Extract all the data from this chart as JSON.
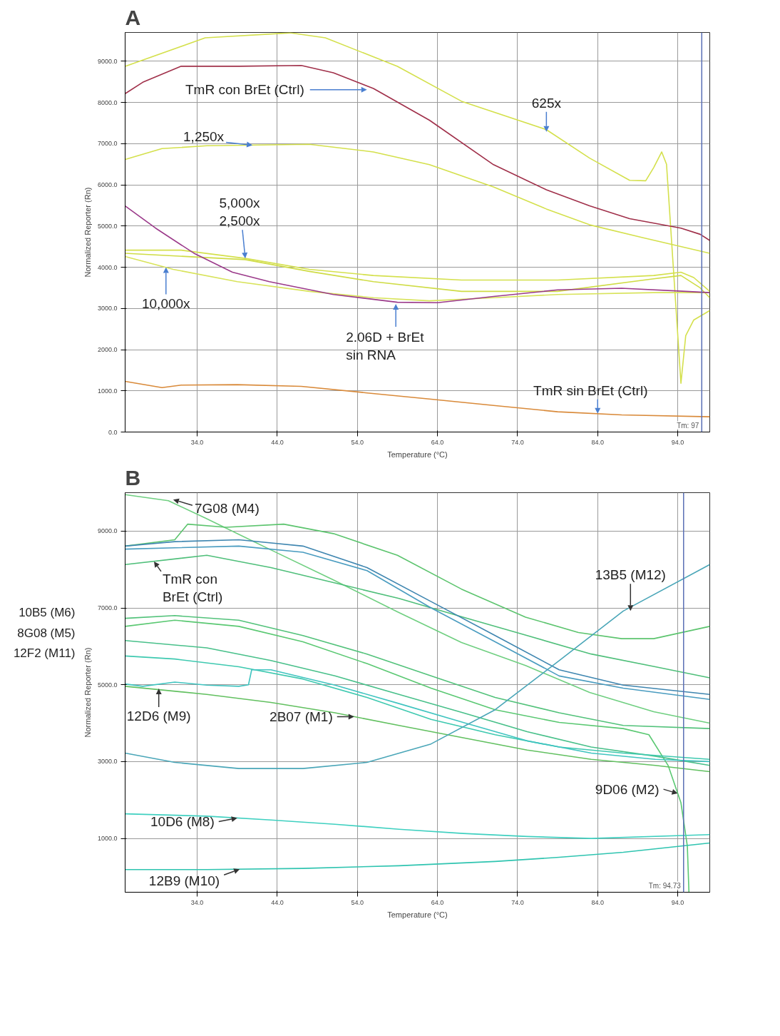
{
  "chart_data": [
    {
      "type": "line",
      "title": "A",
      "xlabel": "Temperature (°C)",
      "ylabel": "Normalized Reporter (Rn)",
      "xlim": [
        25,
        98
      ],
      "ylim": [
        0,
        9700
      ],
      "xticks": [
        {
          "value": 34,
          "label": "34.0"
        },
        {
          "value": 44,
          "label": "44.0"
        },
        {
          "value": 54,
          "label": "54.0"
        },
        {
          "value": 64,
          "label": "64.0"
        },
        {
          "value": 74,
          "label": "74.0"
        },
        {
          "value": 84,
          "label": "84.0"
        },
        {
          "value": 94,
          "label": "94.0"
        }
      ],
      "yticks": [
        {
          "value": 0,
          "label": "0.0"
        },
        {
          "value": 1000,
          "label": "1000.0"
        },
        {
          "value": 2000,
          "label": "2000.0"
        },
        {
          "value": 3000,
          "label": "3000.0"
        },
        {
          "value": 4000,
          "label": "4000.0"
        },
        {
          "value": 5000,
          "label": "5000.0"
        },
        {
          "value": 6000,
          "label": "6000.0"
        },
        {
          "value": 7000,
          "label": "7000.0"
        },
        {
          "value": 8000,
          "label": "8000.0"
        },
        {
          "value": 9000,
          "label": "9000.0"
        }
      ],
      "grid": true,
      "marker": "none",
      "line_style": "solid",
      "series": [
        {
          "color": "#d4e04c",
          "x": [
            25,
            35,
            45.6,
            50,
            59,
            67,
            77.6,
            83,
            88,
            90,
            91,
            92,
            92.6,
            94.4,
            95,
            96,
            98
          ],
          "values": [
            8877,
            9570,
            9690,
            9570,
            8877,
            8030,
            7340,
            6650,
            6110,
            6100,
            6420,
            6800,
            6500,
            1185,
            2340,
            2720,
            2950
          ]
        },
        {
          "color": "#a0304a",
          "x": [
            25,
            27.2,
            32,
            39.2,
            47,
            51,
            56,
            63,
            71,
            77.6,
            83,
            88,
            94.4,
            96.8,
            98
          ],
          "values": [
            8215,
            8490,
            8880,
            8880,
            8900,
            8720,
            8340,
            7570,
            6490,
            5880,
            5490,
            5180,
            4950,
            4800,
            4650
          ]
        },
        {
          "color": "#d4e04c",
          "x": [
            25,
            29.6,
            35.2,
            48,
            56,
            63,
            71,
            77.6,
            83,
            89.6,
            98
          ],
          "values": [
            6615,
            6880,
            6950,
            6985,
            6800,
            6490,
            5950,
            5415,
            5030,
            4720,
            4340
          ]
        },
        {
          "color": "#d4e04c",
          "x": [
            25,
            32,
            40,
            48,
            56,
            67,
            79,
            91,
            94.4,
            96,
            98
          ],
          "values": [
            4415,
            4415,
            4215,
            3950,
            3800,
            3690,
            3690,
            3800,
            3880,
            3750,
            3415
          ]
        },
        {
          "color": "#cfdc45",
          "x": [
            25,
            40,
            48,
            56,
            67,
            79,
            91,
            94.4,
            96.8,
            98
          ],
          "values": [
            4340,
            4185,
            3900,
            3650,
            3415,
            3415,
            3720,
            3800,
            3500,
            3260
          ]
        },
        {
          "color": "#d8e35a",
          "x": [
            25,
            31,
            39,
            48,
            56,
            63,
            71,
            79,
            91,
            98
          ],
          "values": [
            4260,
            3950,
            3650,
            3415,
            3260,
            3185,
            3260,
            3340,
            3385,
            3385
          ]
        },
        {
          "color": "#9b3a8a",
          "x": [
            25,
            28.8,
            33.6,
            38.4,
            43,
            51,
            59,
            64,
            71,
            79,
            87,
            95,
            98
          ],
          "values": [
            5490,
            4950,
            4340,
            3880,
            3650,
            3340,
            3150,
            3140,
            3290,
            3450,
            3490,
            3415,
            3385
          ]
        },
        {
          "color": "#d98a3a",
          "x": [
            25,
            29.6,
            32,
            39,
            47,
            55,
            63,
            71,
            79,
            87,
            98
          ],
          "values": [
            1230,
            1077,
            1140,
            1150,
            1108,
            954,
            800,
            646,
            492,
            415,
            370
          ]
        }
      ],
      "ref_lines": [
        {
          "axis": "x",
          "value": 97,
          "label": "Tm: 97",
          "color": "#5a6fb5"
        }
      ],
      "annotations": [
        {
          "text": "TmR con BrEt (Ctrl)",
          "x": 55.2,
          "y": 8310
        },
        {
          "text": "625x",
          "x": 77.6,
          "y": 7290
        },
        {
          "text": "1,250x",
          "x": 40.9,
          "y": 6965
        },
        {
          "text": "5,000x\n2,500x",
          "x": 40,
          "y": 4215
        },
        {
          "text": "10,000x",
          "x": 30.1,
          "y": 4000
        },
        {
          "text": "2.06D + BrEt\nsin RNA",
          "x": 58.8,
          "y": 3110
        },
        {
          "text": "TmR sin BrEt (Ctrl)",
          "x": 84,
          "y": 444
        }
      ]
    },
    {
      "type": "line",
      "title": "B",
      "xlabel": "Temperature (°C)",
      "ylabel": "Normalized Reporter (Rn)",
      "xlim": [
        25,
        98
      ],
      "ylim": [
        -400,
        10000
      ],
      "xticks": [
        {
          "value": 34,
          "label": "34.0"
        },
        {
          "value": 44,
          "label": "44.0"
        },
        {
          "value": 54,
          "label": "54.0"
        },
        {
          "value": 64,
          "label": "64.0"
        },
        {
          "value": 74,
          "label": "74.0"
        },
        {
          "value": 84,
          "label": "84.0"
        },
        {
          "value": 94,
          "label": "94.0"
        }
      ],
      "yticks": [
        {
          "value": 1000,
          "label": "1000.0"
        },
        {
          "value": 3000,
          "label": "3000.0"
        },
        {
          "value": 5000,
          "label": "5000.0"
        },
        {
          "value": 7000,
          "label": "7000.0"
        },
        {
          "value": 9000,
          "label": "9000.0"
        }
      ],
      "grid": true,
      "marker": "none",
      "line_style": "solid",
      "series": [
        {
          "color": "#6fcf80",
          "x": [
            25,
            30.4,
            35,
            43,
            51,
            59,
            67,
            75,
            83,
            91,
            98
          ],
          "values": [
            9950,
            9790,
            9340,
            8530,
            7730,
            6900,
            6100,
            5500,
            4800,
            4300,
            4000
          ]
        },
        {
          "color": "#5cc46e",
          "x": [
            25,
            31.2,
            32.8,
            37.6,
            44.8,
            51,
            59,
            67,
            75,
            81.6,
            87,
            91,
            98
          ],
          "values": [
            8610,
            8775,
            9180,
            9100,
            9180,
            8935,
            8370,
            7490,
            6760,
            6360,
            6200,
            6200,
            6520
          ]
        },
        {
          "color": "#4fbf7a",
          "x": [
            25,
            35.2,
            43.2,
            51.2,
            59.2,
            67.2,
            75.2,
            83.2,
            91.2,
            98
          ],
          "values": [
            8130,
            8370,
            8050,
            7650,
            7245,
            6760,
            6280,
            5800,
            5470,
            5180
          ]
        },
        {
          "color": "#3f86b0",
          "x": [
            25,
            31.2,
            39.2,
            47.2,
            55.2,
            63.2,
            71.2,
            79.2,
            87.2,
            98
          ],
          "values": [
            8610,
            8725,
            8775,
            8610,
            8050,
            7165,
            6280,
            5390,
            4990,
            4750
          ]
        },
        {
          "color": "#4a9cc0",
          "x": [
            25,
            31.2,
            39.2,
            47.2,
            55.2,
            63.2,
            71.2,
            79.2,
            87.2,
            98
          ],
          "values": [
            8530,
            8565,
            8610,
            8450,
            7970,
            7000,
            6120,
            5230,
            4910,
            4620
          ]
        },
        {
          "color": "#52c27a",
          "x": [
            25,
            31.2,
            39.2,
            47.2,
            55.2,
            63.2,
            71.2,
            79.2,
            87.2,
            98
          ],
          "values": [
            6730,
            6800,
            6680,
            6280,
            5800,
            5230,
            4670,
            4270,
            3940,
            3860
          ]
        },
        {
          "color": "#5ac872",
          "x": [
            25,
            31.2,
            39.2,
            47.2,
            55.2,
            63.2,
            71.2,
            79.2,
            87.2,
            90.4,
            92.8,
            94.4,
            95.2,
            95.4
          ],
          "values": [
            6520,
            6680,
            6520,
            6120,
            5550,
            4910,
            4350,
            4020,
            3860,
            3700,
            2900,
            1930,
            800,
            -400
          ]
        },
        {
          "color": "#48c08a",
          "x": [
            25,
            35.2,
            43.2,
            51.2,
            59.2,
            67.2,
            75.2,
            83.2,
            91.2,
            98
          ],
          "values": [
            6150,
            5960,
            5630,
            5230,
            4750,
            4270,
            3780,
            3380,
            3140,
            2900
          ]
        },
        {
          "color": "#3ec9b0",
          "x": [
            25,
            31.2,
            39.2,
            47.2,
            55.2,
            63.2,
            71.2,
            79.2,
            87.2,
            98
          ],
          "values": [
            5750,
            5670,
            5470,
            5150,
            4670,
            4100,
            3700,
            3380,
            3220,
            3060
          ]
        },
        {
          "color": "#40c4c0",
          "x": [
            25,
            27.2,
            31.2,
            35.2,
            39.2,
            40.4,
            40.8,
            43.2,
            51.2,
            59.2,
            67.2,
            75.2,
            83.2,
            91.2,
            98
          ],
          "values": [
            5020,
            4960,
            5070,
            4990,
            4960,
            5000,
            5390,
            5390,
            4990,
            4510,
            4020,
            3540,
            3220,
            3060,
            3000
          ]
        },
        {
          "color": "#62c060",
          "x": [
            25,
            35.2,
            43.2,
            51.2,
            59.2,
            67.2,
            75.2,
            83.2,
            91.2,
            98
          ],
          "values": [
            4960,
            4750,
            4540,
            4270,
            3940,
            3620,
            3300,
            3060,
            2900,
            2740
          ]
        },
        {
          "color": "#4aa6b8",
          "x": [
            25,
            31.2,
            39.2,
            47.2,
            55.2,
            63.2,
            71.2,
            79.2,
            87.2,
            98
          ],
          "values": [
            3220,
            2980,
            2820,
            2820,
            2980,
            3460,
            4350,
            5630,
            6920,
            8130
          ]
        },
        {
          "color": "#3fd0c0",
          "x": [
            25,
            35.2,
            43.2,
            51.2,
            59.2,
            67.2,
            75.2,
            83.2,
            98
          ],
          "values": [
            1640,
            1580,
            1480,
            1370,
            1240,
            1130,
            1050,
            1000,
            1100
          ]
        },
        {
          "color": "#2fc4b0",
          "x": [
            25,
            35.2,
            47.2,
            59.2,
            71.2,
            79.2,
            87.2,
            98
          ],
          "values": [
            190,
            190,
            220,
            290,
            400,
            510,
            640,
            880
          ]
        }
      ],
      "ref_lines": [
        {
          "axis": "x",
          "value": 94.73,
          "label": "Tm: 94.73",
          "color": "#5a6fb5"
        }
      ],
      "annotations": [
        {
          "text": "7G08 (M4)",
          "x": 31,
          "y": 9820
        },
        {
          "text": "TmR con\nBrEt (Ctrl)",
          "x": 28.6,
          "y": 8210
        },
        {
          "text": "13B5 (M12)",
          "x": 88.1,
          "y": 6920
        },
        "10B5 (M6)",
        "8G08 (M5)",
        "12F2 (M11)",
        {
          "text": "12D6 (M9)",
          "x": 29.2,
          "y": 4900
        },
        {
          "text": "2B07 (M1)",
          "x": 53.6,
          "y": 4170
        },
        {
          "text": "9D06 (M2)",
          "x": 94,
          "y": 2170
        },
        {
          "text": "10D6 (M8)",
          "x": 39,
          "y": 1530
        },
        {
          "text": "12B9 (M10)",
          "x": 39.3,
          "y": 200
        }
      ]
    }
  ]
}
